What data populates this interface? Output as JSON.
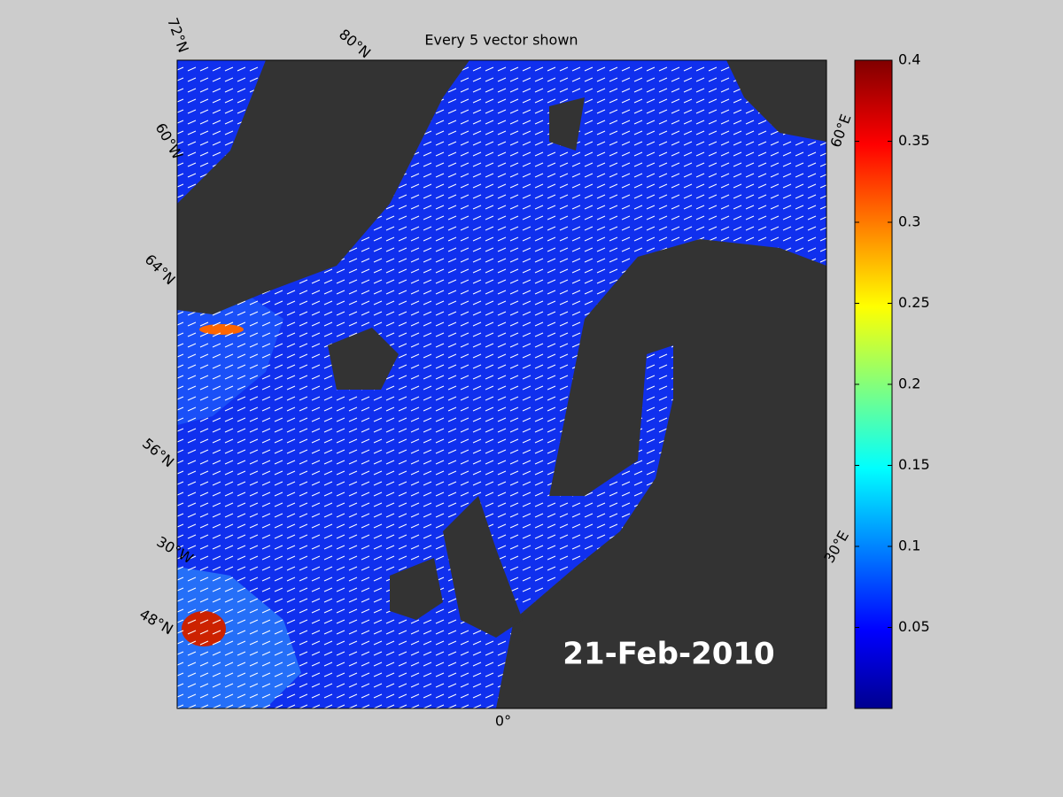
{
  "title": "Every 5 vector shown",
  "date": "21-Feb-2010",
  "map_labels": [
    "72°N",
    "80°N",
    "60°W",
    "64°N",
    "56°N",
    "30°W",
    "48°N",
    "60°E",
    "30°E",
    "0°"
  ],
  "colorbar": {
    "lim": [
      0,
      0.4
    ],
    "ticks": [
      0.05,
      0.1,
      0.15,
      0.2,
      0.25,
      0.3,
      0.35,
      0.4
    ]
  }
}
